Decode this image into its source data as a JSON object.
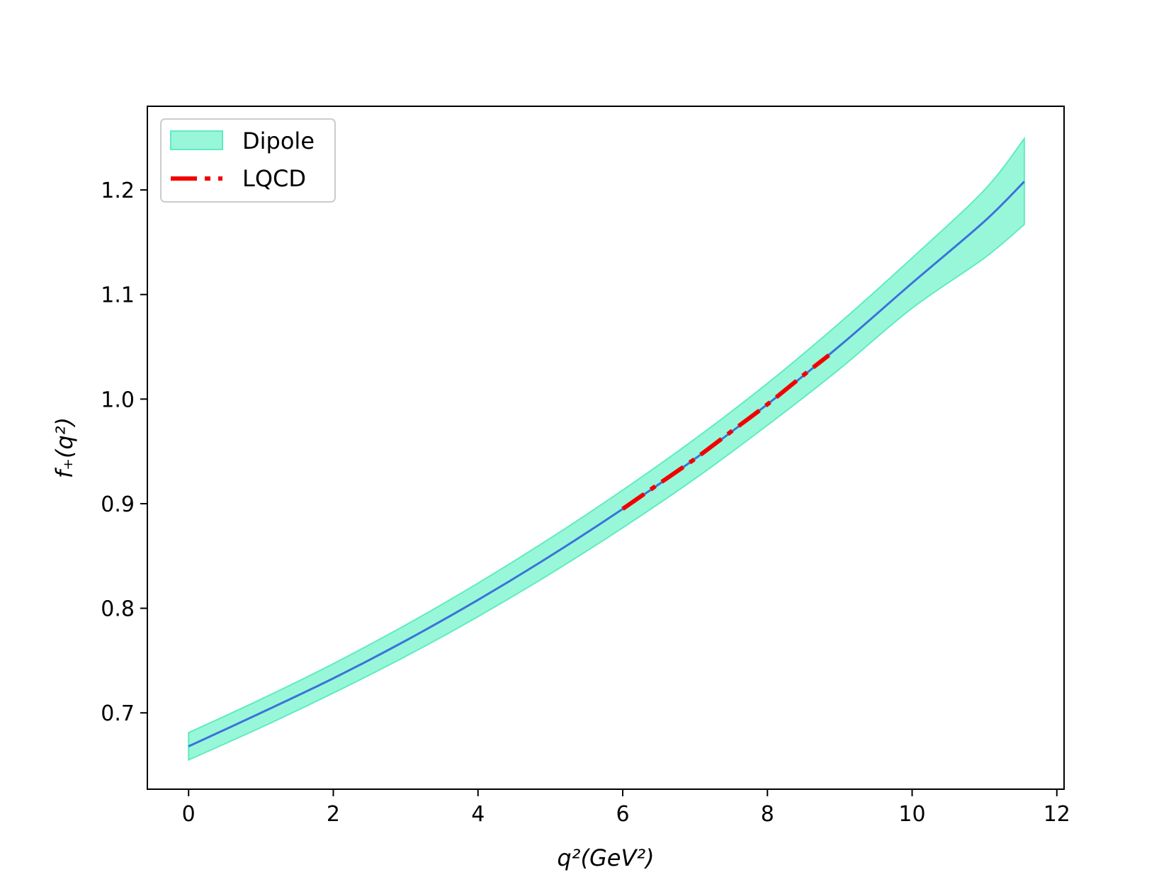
{
  "chart_data": {
    "type": "line",
    "title": "",
    "xlabel": "q²(GeV²)",
    "ylabel": "f₊(q²)",
    "xlim": [
      -0.57,
      12.1
    ],
    "ylim": [
      0.627,
      1.28
    ],
    "x_ticks": [
      0,
      2,
      4,
      6,
      8,
      10,
      12
    ],
    "y_ticks": [
      0.7,
      0.8,
      0.9,
      1.0,
      1.1,
      1.2
    ],
    "x_tick_labels": [
      "0",
      "2",
      "4",
      "6",
      "8",
      "10",
      "12"
    ],
    "y_tick_labels": [
      "0.7",
      "0.8",
      "0.9",
      "1.0",
      "1.1",
      "1.2"
    ],
    "grid": false,
    "legend_position": "top-left",
    "colors": {
      "band_fill": "#99f7d9",
      "band_edge": "#5eecc0",
      "central_line": "#3b73d9",
      "lqcd_line": "#f20000"
    },
    "series": [
      {
        "name": "Dipole",
        "kind": "band",
        "x": [
          0,
          1,
          2,
          3,
          4,
          5,
          6,
          7,
          8,
          9,
          10,
          11,
          11.55
        ],
        "lower": [
          0.655,
          0.686,
          0.719,
          0.754,
          0.792,
          0.833,
          0.877,
          0.924,
          0.975,
          1.029,
          1.087,
          1.135,
          1.167
        ],
        "upper": [
          0.681,
          0.713,
          0.747,
          0.784,
          0.824,
          0.867,
          0.913,
          0.962,
          1.015,
          1.073,
          1.135,
          1.2,
          1.249
        ]
      },
      {
        "name": "",
        "kind": "central",
        "x": [
          0,
          1,
          2,
          3,
          4,
          5,
          6,
          7,
          8,
          9,
          10,
          11,
          11.55
        ],
        "values": [
          0.668,
          0.7,
          0.733,
          0.769,
          0.808,
          0.85,
          0.895,
          0.943,
          0.995,
          1.051,
          1.111,
          1.17,
          1.208
        ]
      },
      {
        "name": "LQCD",
        "kind": "dashed",
        "x": [
          6.0,
          6.5,
          7.0,
          7.5,
          8.0,
          8.5,
          8.85
        ],
        "values": [
          0.895,
          0.919,
          0.943,
          0.969,
          0.995,
          1.023,
          1.042
        ]
      }
    ]
  }
}
